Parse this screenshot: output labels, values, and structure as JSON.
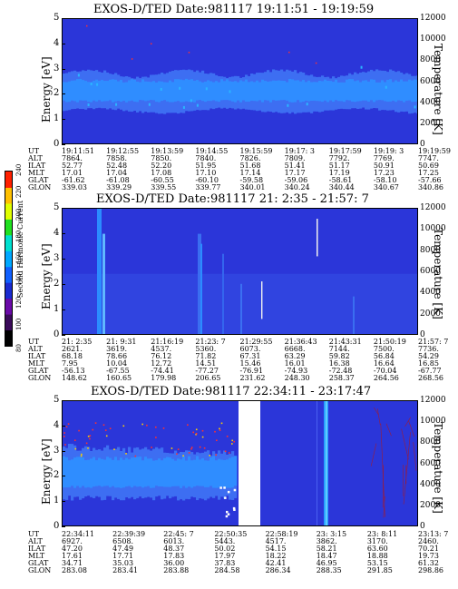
{
  "colorbar": {
    "label": "Second Harmonic Current",
    "ticks": [
      "80",
      "100",
      "120",
      "140",
      "160",
      "180",
      "200",
      "220",
      "240"
    ],
    "colors": [
      "#000000",
      "#3a0a5a",
      "#6a0aa8",
      "#1a2bd0",
      "#1060ff",
      "#00a8ff",
      "#00e0d0",
      "#20e020",
      "#e0ff00",
      "#ffc000",
      "#ff2000"
    ]
  },
  "chart_data": [
    {
      "type": "heatmap",
      "title": "EXOS-D/TED   Date:981117  19:11:51 - 19:19:59",
      "ylabel": "Energy [eV]",
      "ylabel_right": "Temperature [K]",
      "ylim": [
        0,
        5
      ],
      "ylim_right": [
        0,
        12000
      ],
      "yticks": [
        "0",
        "1",
        "2",
        "3",
        "4",
        "5"
      ],
      "yticks_right": [
        "0",
        "2000",
        "4000",
        "6000",
        "8000",
        "10000",
        "12000"
      ],
      "row_labels": [
        "UT",
        "ALT",
        "ILAT",
        "MLT",
        "GLAT",
        "GLON"
      ],
      "columns": [
        [
          "19:11:51",
          "7864.",
          "52.77",
          "17.01",
          "-61.62",
          "339.03"
        ],
        [
          "19:12:55",
          "7858.",
          "52.48",
          "17.04",
          "-61.08",
          "339.29"
        ],
        [
          "19:13:59",
          "7850.",
          "52.20",
          "17.08",
          "-60.55",
          "339.55"
        ],
        [
          "19:14:55",
          "7840.",
          "51.95",
          "17.10",
          "-60.10",
          "339.77"
        ],
        [
          "19:15:59",
          "7826.",
          "51.68",
          "17.14",
          "-59.58",
          "340.01"
        ],
        [
          "19:17: 3",
          "7809.",
          "51.41",
          "17.17",
          "-59.06",
          "340.24"
        ],
        [
          "19:17:59",
          "7792.",
          "51.17",
          "17.19",
          "-58.61",
          "340.44"
        ],
        [
          "19:19: 3",
          "7769.",
          "50.91",
          "17.23",
          "-58.10",
          "340.67"
        ],
        [
          "19:19:59",
          "7747.",
          "50.69",
          "17.25",
          "-57.66",
          "340.86"
        ]
      ]
    },
    {
      "type": "heatmap",
      "title": "EXOS-D/TED   Date:981117  21: 2:35 - 21:57: 7",
      "ylabel": "Energy [eV]",
      "ylabel_right": "Temperature [K]",
      "ylim": [
        0,
        5
      ],
      "ylim_right": [
        0,
        12000
      ],
      "yticks": [
        "0",
        "1",
        "2",
        "3",
        "4",
        "5"
      ],
      "yticks_right": [
        "0",
        "2000",
        "4000",
        "6000",
        "8000",
        "10000",
        "12000"
      ],
      "row_labels": [
        "UT",
        "ALT",
        "ILAT",
        "MLT",
        "GLAT",
        "GLON"
      ],
      "columns": [
        [
          "21: 2:35",
          "2621.",
          "68.18",
          "7.95",
          "-56.13",
          "148.62"
        ],
        [
          "21: 9:31",
          "3619.",
          "78.66",
          "10.04",
          "-67.55",
          "160.65"
        ],
        [
          "21:16:19",
          "4537.",
          "76.12",
          "12.72",
          "-74.41",
          "179.98"
        ],
        [
          "21:23: 7",
          "5360.",
          "71.82",
          "14.51",
          "-77.27",
          "206.65"
        ],
        [
          "21:29:55",
          "6073.",
          "67.31",
          "15.46",
          "-76.91",
          "231.62"
        ],
        [
          "21:36:43",
          "6668.",
          "63.29",
          "16.01",
          "-74.93",
          "248.30"
        ],
        [
          "21:43:31",
          "7144.",
          "59.82",
          "16.38",
          "-72.48",
          "258.37"
        ],
        [
          "21:50:19",
          "7500.",
          "56.84",
          "16.64",
          "-70.04",
          "264.56"
        ],
        [
          "21:57: 7",
          "7736.",
          "54.29",
          "16.85",
          "-67.77",
          "268.56"
        ]
      ]
    },
    {
      "type": "heatmap",
      "title": "EXOS-D/TED   Date:981117  22:34:11 - 23:17:47",
      "ylabel": "Energy [eV]",
      "ylabel_right": "Temperature [K]",
      "ylim": [
        0,
        5
      ],
      "ylim_right": [
        0,
        12000
      ],
      "yticks": [
        "0",
        "1",
        "2",
        "3",
        "4",
        "5"
      ],
      "yticks_right": [
        "0",
        "2000",
        "4000",
        "6000",
        "8000",
        "10000",
        "12000"
      ],
      "row_labels": [
        "UT",
        "ALT",
        "ILAT",
        "MLT",
        "GLAT",
        "GLON"
      ],
      "columns": [
        [
          "22:34:11",
          "6927.",
          "47.20",
          "17.61",
          "34.71",
          "283.08"
        ],
        [
          "22:39:39",
          "6508.",
          "47.49",
          "17.71",
          "35.03",
          "283.41"
        ],
        [
          "22:45: 7",
          "6013.",
          "48.37",
          "17.83",
          "36.00",
          "283.88"
        ],
        [
          "22:50:35",
          "5443.",
          "50.02",
          "17.97",
          "37.83",
          "284.58"
        ],
        [
          "22:58:19",
          "4517.",
          "54.15",
          "18.22",
          "42.41",
          "286.34"
        ],
        [
          "23: 3:15",
          "3862.",
          "58.21",
          "18.47",
          "46.95",
          "288.35"
        ],
        [
          "23: 8:11",
          "3170.",
          "63.60",
          "18.88",
          "53.15",
          "291.85"
        ],
        [
          "23:13: 7",
          "2460.",
          "70.21",
          "19.73",
          "61.32",
          "298.86"
        ]
      ]
    }
  ]
}
